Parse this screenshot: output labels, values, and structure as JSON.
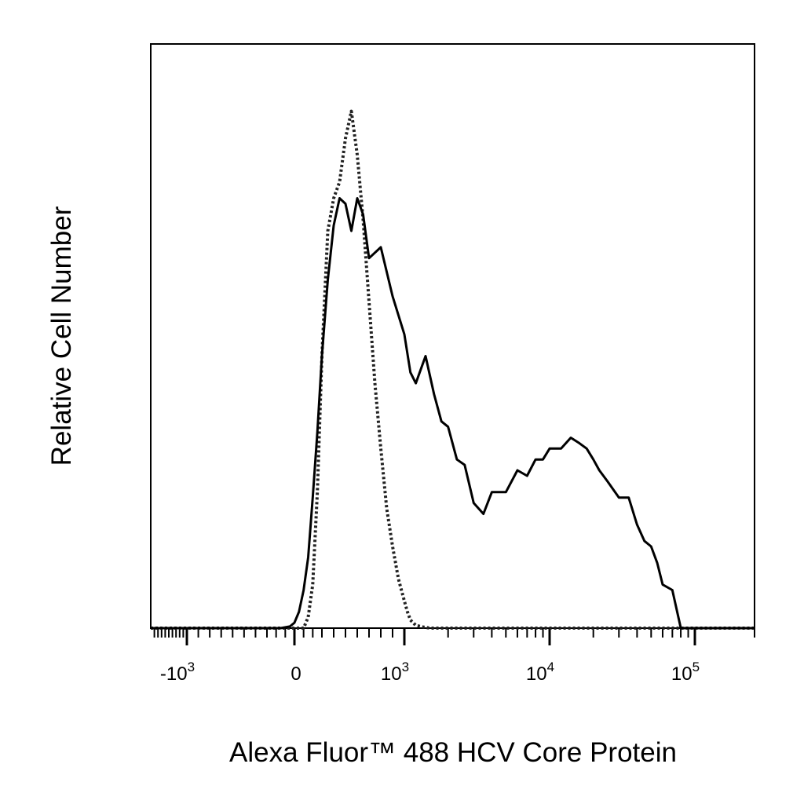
{
  "chart_data": {
    "type": "line",
    "title": "",
    "xlabel": "Alexa Fluor™ 488 HCV Core Protein",
    "ylabel": "Relative Cell Number",
    "x_scale": "biexponential",
    "xlim": [
      -2000,
      150000
    ],
    "ylim": [
      0,
      100
    ],
    "grid": false,
    "legend": "none",
    "x_tick_labels": [
      {
        "base": "-10",
        "exp": "3",
        "value": -1000
      },
      {
        "base": "0",
        "exp": "",
        "value": 0
      },
      {
        "base": "10",
        "exp": "3",
        "value": 1000
      },
      {
        "base": "10",
        "exp": "4",
        "value": 10000
      },
      {
        "base": "10",
        "exp": "5",
        "value": 100000
      }
    ],
    "series": [
      {
        "style": "dashed",
        "color": "#222222",
        "x": [
          -2000,
          -600,
          -150,
          100,
          150,
          200,
          250,
          300,
          350,
          400,
          450,
          500,
          550,
          600,
          650,
          700,
          750,
          800,
          850,
          900,
          950,
          1000,
          1050,
          1100,
          1200,
          1350,
          1500,
          2000,
          5000,
          20000,
          100000,
          150000
        ],
        "y": [
          0,
          0,
          0,
          0,
          2,
          8,
          25,
          50,
          73,
          79,
          82,
          90,
          95,
          87,
          75,
          60,
          45,
          33,
          22,
          15,
          9,
          5,
          3,
          1.5,
          0.5,
          0.2,
          0,
          0,
          0,
          0,
          0,
          0
        ]
      },
      {
        "style": "solid",
        "color": "#000000",
        "x": [
          -2000,
          -600,
          -150,
          -50,
          0,
          50,
          100,
          150,
          200,
          250,
          300,
          350,
          400,
          450,
          500,
          550,
          600,
          650,
          700,
          800,
          900,
          1000,
          1100,
          1200,
          1400,
          1600,
          1800,
          2000,
          2300,
          2600,
          3000,
          3500,
          4000,
          5000,
          6000,
          7000,
          8000,
          9000,
          10000,
          12000,
          14000,
          16000,
          18000,
          20000,
          22000,
          25000,
          30000,
          35000,
          40000,
          45000,
          50000,
          55000,
          60000,
          70000,
          80000,
          90000,
          100000,
          150000
        ],
        "y": [
          0,
          0,
          0,
          0.3,
          1,
          3,
          7,
          13,
          24,
          36,
          50,
          64,
          74,
          79,
          78,
          73,
          79,
          76,
          68,
          70,
          61,
          54,
          47,
          45,
          50,
          43,
          38,
          37,
          31,
          30,
          23,
          21,
          25,
          25,
          29,
          28,
          31,
          31,
          33,
          33,
          35,
          34,
          33,
          31,
          29,
          27,
          24,
          24,
          19,
          16,
          15,
          12,
          8,
          7,
          0,
          0,
          0,
          0
        ]
      }
    ]
  }
}
